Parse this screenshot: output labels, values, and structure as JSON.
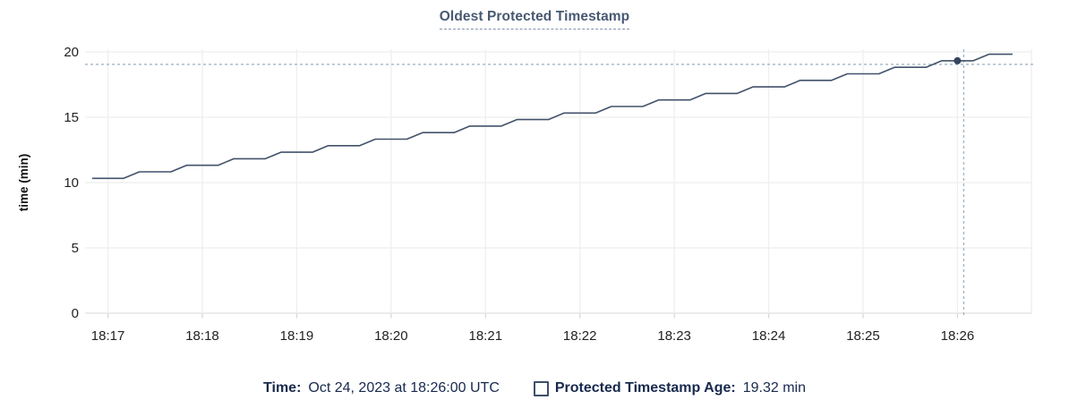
{
  "title": "Oldest Protected Timestamp",
  "footer": {
    "time_label": "Time:",
    "time_value": "Oct 24, 2023 at 18:26:00 UTC",
    "series_label": "Protected Timestamp Age:",
    "series_value": "19.32 min"
  },
  "colors": {
    "accent_slate": "#475872",
    "line": "#42526b",
    "hover_point": "#36455f",
    "crosshair": "#a4b5c4",
    "grid": "#ededed",
    "axis_line": "#e0e0e0",
    "tick_mark": "#d9d9d9",
    "tick_text": "#222222",
    "footer_text": "#17294d"
  },
  "chart_data": {
    "type": "line",
    "title": "Oldest Protected Timestamp",
    "xlabel": "",
    "ylabel": "time (min)",
    "ylim": [
      0,
      20
    ],
    "y_ticks": [
      0,
      5,
      10,
      15,
      20
    ],
    "x_domain_s": [
      -10,
      587
    ],
    "x_tick_labels": [
      "18:17",
      "18:18",
      "18:19",
      "18:20",
      "18:21",
      "18:22",
      "18:23",
      "18:24",
      "18:25",
      "18:26"
    ],
    "x_ticks_s": [
      0,
      60,
      120,
      180,
      240,
      300,
      360,
      420,
      480,
      540
    ],
    "grid": true,
    "legend_position": "bottom",
    "series": [
      {
        "name": "Protected Timestamp Age",
        "unit": "min",
        "points": [
          [
            -10,
            10.32
          ],
          [
            0,
            10.32
          ],
          [
            10,
            10.32
          ],
          [
            20,
            10.82
          ],
          [
            30,
            10.82
          ],
          [
            40,
            10.82
          ],
          [
            50,
            11.32
          ],
          [
            60,
            11.32
          ],
          [
            70,
            11.32
          ],
          [
            80,
            11.82
          ],
          [
            90,
            11.82
          ],
          [
            100,
            11.82
          ],
          [
            110,
            12.32
          ],
          [
            120,
            12.32
          ],
          [
            130,
            12.32
          ],
          [
            140,
            12.82
          ],
          [
            150,
            12.82
          ],
          [
            160,
            12.82
          ],
          [
            170,
            13.32
          ],
          [
            180,
            13.32
          ],
          [
            190,
            13.32
          ],
          [
            200,
            13.82
          ],
          [
            210,
            13.82
          ],
          [
            220,
            13.82
          ],
          [
            230,
            14.32
          ],
          [
            240,
            14.32
          ],
          [
            250,
            14.32
          ],
          [
            260,
            14.82
          ],
          [
            270,
            14.82
          ],
          [
            280,
            14.82
          ],
          [
            290,
            15.32
          ],
          [
            300,
            15.32
          ],
          [
            310,
            15.32
          ],
          [
            320,
            15.82
          ],
          [
            330,
            15.82
          ],
          [
            340,
            15.82
          ],
          [
            350,
            16.32
          ],
          [
            360,
            16.32
          ],
          [
            370,
            16.32
          ],
          [
            380,
            16.82
          ],
          [
            390,
            16.82
          ],
          [
            400,
            16.82
          ],
          [
            410,
            17.32
          ],
          [
            420,
            17.32
          ],
          [
            430,
            17.32
          ],
          [
            440,
            17.82
          ],
          [
            450,
            17.82
          ],
          [
            460,
            17.82
          ],
          [
            470,
            18.32
          ],
          [
            480,
            18.32
          ],
          [
            490,
            18.32
          ],
          [
            500,
            18.82
          ],
          [
            510,
            18.82
          ],
          [
            520,
            18.82
          ],
          [
            530,
            19.32
          ],
          [
            540,
            19.32
          ],
          [
            550,
            19.32
          ],
          [
            560,
            19.82
          ],
          [
            570,
            19.82
          ],
          [
            575,
            19.82
          ]
        ]
      }
    ],
    "highlight": {
      "t_s": 540,
      "time": "Oct 24, 2023 at 18:26:00 UTC",
      "value": 19.32,
      "value_label": "19.32 min"
    }
  }
}
